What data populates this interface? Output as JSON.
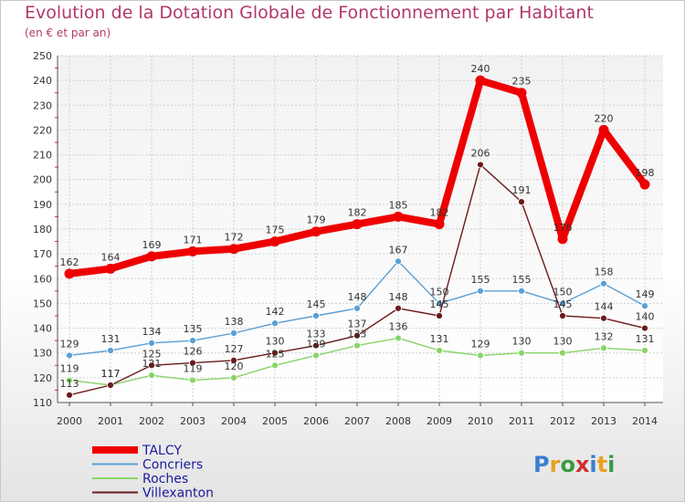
{
  "chart_data": {
    "type": "line",
    "title": "Evolution de la Dotation Globale de Fonctionnement par Habitant",
    "subtitle": "(en € et par an)",
    "xlabel": "",
    "ylabel": "",
    "x": [
      "2000",
      "2001",
      "2002",
      "2003",
      "2004",
      "2005",
      "2006",
      "2007",
      "2008",
      "2009",
      "2010",
      "2011",
      "2012",
      "2013",
      "2014"
    ],
    "ylim": [
      110,
      250
    ],
    "yticks": [
      110,
      120,
      130,
      140,
      150,
      160,
      170,
      180,
      190,
      200,
      210,
      220,
      230,
      240,
      250
    ],
    "grid": true,
    "legend_position": "bottom-left",
    "series": [
      {
        "name": "TALCY",
        "color": "#ee0000",
        "values": [
          162,
          164,
          169,
          171,
          172,
          175,
          179,
          182,
          185,
          182,
          240,
          235,
          176,
          220,
          198
        ],
        "labels": [
          "162",
          "164",
          "169",
          "171",
          "172",
          "175",
          "179",
          "182",
          "185",
          "182",
          "240",
          "235",
          "176",
          "220",
          "198"
        ]
      },
      {
        "name": "Concriers",
        "color": "#5a9fd4",
        "values": [
          129,
          131,
          134,
          135,
          138,
          142,
          145,
          148,
          167,
          150,
          155,
          155,
          150,
          158,
          149
        ],
        "labels": [
          "129",
          "131",
          "134",
          "135",
          "138",
          "142",
          "145",
          "148",
          "167",
          "150",
          "155",
          "155",
          "150",
          "158",
          "149"
        ]
      },
      {
        "name": "Roches",
        "color": "#88d466",
        "values": [
          119,
          117,
          121,
          119,
          120,
          125,
          129,
          133,
          136,
          131,
          129,
          130,
          130,
          132,
          131
        ],
        "labels": [
          "119",
          "117",
          "121",
          "119",
          "120",
          "125",
          "129",
          "133",
          "136",
          "131",
          "129",
          "130",
          "130",
          "132",
          "131"
        ]
      },
      {
        "name": "Villexanton",
        "color": "#6b1a1a",
        "values": [
          113,
          117,
          125,
          126,
          127,
          130,
          133,
          137,
          148,
          145,
          206,
          191,
          145,
          144,
          140
        ],
        "labels": [
          "113",
          "117",
          "125",
          "126",
          "127",
          "130",
          "133",
          "137",
          "148",
          "145",
          "206",
          "191",
          "145",
          "144",
          "140"
        ]
      }
    ]
  },
  "logo": {
    "text": "Proxiti"
  }
}
